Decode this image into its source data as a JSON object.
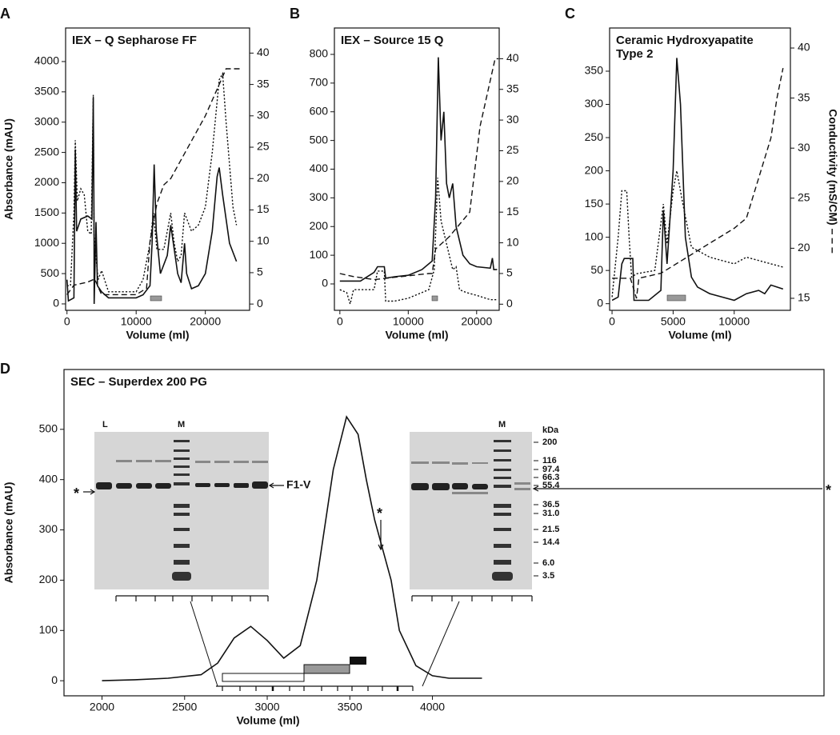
{
  "chart_data": [
    {
      "type": "line",
      "panel": "A",
      "title": "IEX – Q Sepharose FF",
      "xlabel": "Volume (ml)",
      "ylabel": "Absorbance (mAU)",
      "xlim": [
        -200,
        26400
      ],
      "xticks": [
        0,
        10000,
        20000
      ],
      "ylim": [
        -106,
        4554
      ],
      "yticks": [
        0,
        500,
        1000,
        1500,
        2000,
        2500,
        3000,
        3500,
        4000
      ],
      "y2lim": [
        -1,
        44
      ],
      "y2ticks": [
        0,
        5,
        10,
        15,
        20,
        25,
        30,
        35,
        40
      ],
      "series": [
        {
          "color": "#111111",
          "dash": "solid",
          "x": [
            0,
            200,
            1000,
            1200,
            1400,
            2000,
            3000,
            3600,
            3800,
            3900,
            3930,
            4200,
            4400,
            5000,
            6000,
            10000,
            11000,
            12000,
            12300,
            12600,
            12900,
            13500,
            14500,
            15000,
            15500,
            16000,
            16500,
            17000,
            17300,
            18000,
            19000,
            20000,
            21000,
            21700,
            22000,
            22500,
            23500,
            24500
          ],
          "values": [
            400,
            50,
            100,
            2550,
            1200,
            1400,
            1450,
            1400,
            3400,
            1400,
            0,
            1350,
            300,
            200,
            100,
            100,
            150,
            300,
            1000,
            2300,
            1200,
            500,
            800,
            1300,
            900,
            500,
            350,
            1000,
            500,
            250,
            300,
            500,
            1200,
            2100,
            2250,
            1800,
            1000,
            700
          ]
        },
        {
          "color": "#111111",
          "dash": "dotted",
          "x": [
            0,
            500,
            1000,
            1200,
            1500,
            2000,
            2500,
            3000,
            3500,
            3800,
            3900,
            4500,
            5000,
            6000,
            8000,
            10000,
            11000,
            12000,
            12500,
            13000,
            14000,
            14500,
            15000,
            15500,
            16000,
            16500,
            17000,
            18000,
            19000,
            20000,
            21000,
            22000,
            22500,
            23000,
            24000,
            24500
          ],
          "values": [
            300,
            300,
            1500,
            2700,
            1700,
            1900,
            1800,
            1200,
            1150,
            3450,
            1150,
            400,
            550,
            200,
            200,
            200,
            400,
            1000,
            1500,
            900,
            900,
            1200,
            1500,
            1000,
            700,
            800,
            1500,
            1200,
            1300,
            1600,
            2500,
            3700,
            3800,
            3000,
            1600,
            1300
          ]
        },
        {
          "color": "#111111",
          "dash": "dashed",
          "axis": "y2",
          "x": [
            0,
            1000,
            3000,
            4000,
            5000,
            10000,
            11500,
            12000,
            13000,
            14000,
            15000,
            20000,
            22000,
            23000,
            25000
          ],
          "values": [
            1.5,
            3,
            3.5,
            4,
            1.5,
            1.5,
            2.5,
            10,
            16,
            19,
            20,
            30,
            35,
            37.5,
            37.5
          ]
        }
      ]
    },
    {
      "type": "line",
      "panel": "B",
      "title": "IEX – Source 15 Q",
      "xlabel": "Volume (ml)",
      "xlim": [
        -800,
        23300
      ],
      "xticks": [
        0,
        10000,
        20000
      ],
      "ylim": [
        -92,
        892
      ],
      "yticks": [
        0,
        100,
        200,
        300,
        400,
        500,
        600,
        700,
        800
      ],
      "y2lim": [
        -1,
        45
      ],
      "y2ticks": [
        0,
        5,
        10,
        15,
        20,
        25,
        30,
        35,
        40
      ],
      "series": [
        {
          "color": "#111111",
          "dash": "solid",
          "x": [
            0,
            3000,
            5000,
            5500,
            6500,
            6700,
            8000,
            10000,
            12000,
            13500,
            14000,
            14400,
            14800,
            15200,
            15600,
            16000,
            16500,
            17000,
            18000,
            19000,
            20000,
            22000,
            22300,
            22500,
            23000
          ],
          "values": [
            10,
            10,
            40,
            60,
            60,
            20,
            25,
            30,
            50,
            80,
            300,
            790,
            500,
            600,
            350,
            300,
            350,
            200,
            100,
            70,
            60,
            55,
            90,
            50,
            50
          ]
        },
        {
          "color": "#111111",
          "dash": "dotted",
          "x": [
            0,
            1000,
            1500,
            2000,
            5000,
            5500,
            6500,
            6700,
            8000,
            10000,
            13000,
            13800,
            14300,
            14800,
            15500,
            16500,
            17000,
            17500,
            18500,
            20000,
            22000,
            23000
          ],
          "values": [
            -20,
            -30,
            -70,
            -20,
            -20,
            45,
            45,
            -60,
            -60,
            -50,
            -20,
            50,
            370,
            220,
            150,
            50,
            60,
            -20,
            -30,
            -40,
            -55,
            -55
          ]
        },
        {
          "color": "#111111",
          "dash": "dashed",
          "axis": "y2",
          "x": [
            0,
            2000,
            5000,
            13000,
            13500,
            14000,
            16000,
            19000,
            19200,
            20500,
            22700,
            23200
          ],
          "values": [
            5,
            4.5,
            4,
            5,
            5,
            9,
            11,
            15,
            17,
            29,
            40,
            40
          ]
        }
      ]
    },
    {
      "type": "line",
      "panel": "C",
      "title": "Ceramic Hydroxyapatite\nType 2",
      "xlabel": "Volume (ml)",
      "y2label": "Conductivity (mS/CM) – – –",
      "xlim": [
        -200,
        14600
      ],
      "xticks": [
        0,
        5000,
        10000
      ],
      "ylim": [
        -10,
        415
      ],
      "yticks": [
        0,
        50,
        100,
        150,
        200,
        250,
        300,
        350
      ],
      "y2lim": [
        13.8,
        42
      ],
      "y2ticks": [
        15,
        20,
        25,
        30,
        35,
        40
      ],
      "series": [
        {
          "color": "#111111",
          "dash": "solid",
          "x": [
            0,
            500,
            800,
            1000,
            1700,
            1800,
            3000,
            4000,
            4200,
            4500,
            5000,
            5300,
            5600,
            6000,
            6500,
            7000,
            8000,
            10000,
            11000,
            12000,
            12500,
            13000,
            13500,
            14000
          ],
          "values": [
            5,
            10,
            60,
            68,
            68,
            5,
            5,
            20,
            140,
            60,
            200,
            370,
            300,
            100,
            40,
            25,
            15,
            5,
            15,
            20,
            15,
            28,
            25,
            22
          ]
        },
        {
          "color": "#111111",
          "dash": "dotted",
          "x": [
            0,
            500,
            800,
            1200,
            1400,
            1600,
            2000,
            3500,
            4200,
            4500,
            5000,
            5300,
            5800,
            6500,
            8000,
            10000,
            11000,
            12000,
            13000,
            14000
          ],
          "values": [
            10,
            100,
            170,
            170,
            100,
            40,
            45,
            50,
            150,
            90,
            170,
            200,
            150,
            85,
            70,
            60,
            70,
            65,
            60,
            55
          ]
        },
        {
          "color": "#111111",
          "dash": "dashed",
          "axis": "y2",
          "x": [
            0,
            1500,
            2000,
            2200,
            4000,
            6000,
            8000,
            10000,
            11000,
            12000,
            13000,
            13500,
            14000
          ],
          "values": [
            17,
            17,
            15,
            17,
            17.5,
            19,
            20.5,
            22,
            23,
            27,
            31,
            35,
            38
          ]
        }
      ]
    },
    {
      "type": "line",
      "panel": "D",
      "title": "SEC – Superdex 200 PG",
      "xlabel": "Volume (ml)",
      "ylabel": "Absorbance (mAU)",
      "xlim": [
        1770,
        6370
      ],
      "xticks": [
        2000,
        2500,
        3000,
        3500,
        4000
      ],
      "ylim": [
        -30,
        619
      ],
      "yticks": [
        0,
        100,
        200,
        300,
        400,
        500
      ],
      "series": [
        {
          "color": "#111111",
          "dash": "solid",
          "x": [
            2000,
            2200,
            2400,
            2600,
            2700,
            2800,
            2900,
            3000,
            3100,
            3200,
            3300,
            3400,
            3480,
            3550,
            3600,
            3650,
            3700,
            3750,
            3800,
            3900,
            4000,
            4100,
            4300
          ],
          "values": [
            0,
            2,
            5,
            12,
            35,
            85,
            108,
            80,
            45,
            70,
            200,
            420,
            525,
            490,
            400,
            320,
            260,
            200,
            100,
            30,
            10,
            5,
            5
          ]
        }
      ],
      "gel_labels": {
        "lane_load": "L",
        "lane_marker": "M",
        "band": "F1-V",
        "star": "*",
        "unit": "kDa",
        "markers": [
          "200",
          "116",
          "97.4",
          "66.3",
          "55.4",
          "36.5",
          "31.0",
          "21.5",
          "14.4",
          "6.0",
          "3.5"
        ]
      }
    }
  ]
}
